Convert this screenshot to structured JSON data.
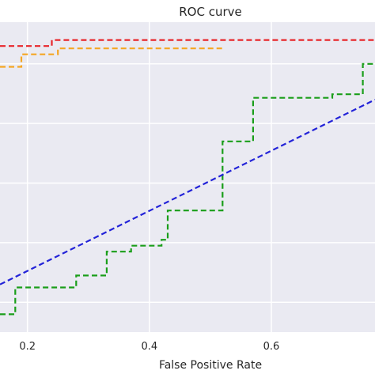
{
  "chart_data": {
    "type": "line",
    "title": "ROC curve",
    "xlabel": "False Positive Rate",
    "ylabel": "",
    "xlim": [
      0.155,
      0.77
    ],
    "ylim": [
      0.5,
      1.02
    ],
    "grid": true,
    "x_ticks": [
      0.2,
      0.4,
      0.6
    ],
    "x_tick_labels": [
      "0.2",
      "0.4",
      "0.6"
    ],
    "y_gridlines": [
      0.55,
      0.65,
      0.75,
      0.85,
      0.95
    ],
    "series": [
      {
        "color": "#e8262b",
        "style": "dashed",
        "x": [
          0.155,
          0.24,
          0.24,
          0.77
        ],
        "y": [
          0.98,
          0.98,
          0.99,
          0.99
        ]
      },
      {
        "color": "#f5a623",
        "style": "dashed",
        "x": [
          0.155,
          0.19,
          0.19,
          0.19,
          0.19,
          0.25,
          0.25,
          0.5,
          0.5,
          0.52
        ],
        "y": [
          0.945,
          0.945,
          0.955,
          0.955,
          0.966,
          0.966,
          0.976,
          0.976,
          0.976,
          0.976
        ]
      },
      {
        "color": "#1a9e1a",
        "style": "dashed",
        "x": [
          0.155,
          0.18,
          0.18,
          0.28,
          0.28,
          0.33,
          0.33,
          0.37,
          0.37,
          0.42,
          0.42,
          0.43,
          0.43,
          0.52,
          0.52,
          0.53,
          0.53,
          0.57,
          0.57,
          0.7,
          0.7,
          0.72,
          0.72,
          0.75,
          0.75,
          0.77
        ],
        "y": [
          0.53,
          0.53,
          0.575,
          0.575,
          0.595,
          0.595,
          0.635,
          0.635,
          0.645,
          0.645,
          0.655,
          0.655,
          0.704,
          0.704,
          0.82,
          0.82,
          0.82,
          0.82,
          0.893,
          0.893,
          0.899,
          0.899,
          0.899,
          0.899,
          0.95,
          0.95
        ]
      },
      {
        "color": "#2323d8",
        "style": "dashed",
        "x": [
          0.155,
          0.77
        ],
        "y": [
          0.58,
          0.89
        ]
      }
    ]
  }
}
